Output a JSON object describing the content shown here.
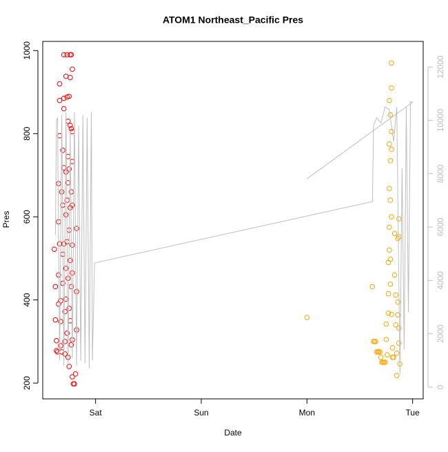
{
  "chart_data": {
    "type": "scatter",
    "title": "ATOM1 Northeast_Pacific Pres",
    "x_label": "Date",
    "y_label": "Pres",
    "xlim": [
      -0.5,
      3.1
    ],
    "xticks": [
      {
        "value": 0,
        "label": "Sat"
      },
      {
        "value": 1,
        "label": "Sun"
      },
      {
        "value": 2,
        "label": "Mon"
      },
      {
        "value": 3,
        "label": "Tue"
      }
    ],
    "ylim": [
      162,
      1022
    ],
    "yticks": [
      200,
      400,
      600,
      800,
      1000
    ],
    "y2lim": [
      -440,
      12960
    ],
    "y2ticks": [
      0,
      2000,
      4000,
      6000,
      8000,
      10000,
      12000
    ],
    "series": [
      {
        "color": "#ff0000",
        "x": [
          -0.39,
          -0.38,
          -0.38,
          -0.37,
          -0.37,
          -0.36,
          -0.35,
          -0.35,
          -0.35,
          -0.35,
          -0.34,
          -0.34,
          -0.34,
          -0.34,
          -0.33,
          -0.33,
          -0.33,
          -0.32,
          -0.32,
          -0.31,
          -0.31,
          -0.31,
          -0.31,
          -0.3,
          -0.3,
          -0.3,
          -0.3,
          -0.3,
          -0.29,
          -0.29,
          -0.29,
          -0.28,
          -0.28,
          -0.28,
          -0.28,
          -0.28,
          -0.27,
          -0.27,
          -0.27,
          -0.27,
          -0.27,
          -0.26,
          -0.26,
          -0.26,
          -0.26,
          -0.26,
          -0.25,
          -0.25,
          -0.25,
          -0.25,
          -0.25,
          -0.24,
          -0.24,
          -0.24,
          -0.24,
          -0.24,
          -0.24,
          -0.23,
          -0.23,
          -0.23,
          -0.23,
          -0.23,
          -0.22,
          -0.22,
          -0.22,
          -0.22,
          -0.22,
          -0.22,
          -0.22,
          -0.22,
          -0.21,
          -0.2,
          -0.19,
          -0.18,
          -0.18,
          -0.18
        ],
        "values": [
          522,
          432,
          352,
          302,
          278,
          275,
          680,
          588,
          460,
          390,
          920,
          880,
          795,
          535,
          398,
          348,
          290,
          275,
          660,
          760,
          628,
          510,
          440,
          990,
          885,
          860,
          718,
          535,
          372,
          300,
          270,
          938,
          708,
          605,
          476,
          402,
          990,
          888,
          640,
          540,
          320,
          830,
          745,
          682,
          452,
          262,
          890,
          715,
          568,
          380,
          240,
          990,
          935,
          820,
          622,
          495,
          350,
          990,
          812,
          660,
          432,
          292,
          955,
          805,
          733,
          628,
          532,
          465,
          304,
          215,
          198,
          198,
          222,
          328,
          420,
          572
        ]
      },
      {
        "color": "#ffa500",
        "x": [
          2.0,
          2.62,
          2.63,
          2.64,
          2.65,
          2.66,
          2.67,
          2.68,
          2.69,
          2.7,
          2.71,
          2.72,
          2.73,
          2.74,
          2.75,
          2.75,
          2.76,
          2.77,
          2.77,
          2.77,
          2.78,
          2.78,
          2.78,
          2.78,
          2.78,
          2.79,
          2.79,
          2.79,
          2.79,
          2.79,
          2.8,
          2.8,
          2.8,
          2.8,
          2.8,
          2.8,
          2.81,
          2.81,
          2.82,
          2.83,
          2.83,
          2.84,
          2.84,
          2.85,
          2.85,
          2.86,
          2.86,
          2.86,
          2.87,
          2.87,
          2.87,
          2.87,
          2.88
        ],
        "values": [
          358,
          432,
          300,
          300,
          300,
          275,
          275,
          275,
          275,
          262,
          250,
          250,
          250,
          250,
          342,
          305,
          268,
          490,
          415,
          368,
          775,
          668,
          575,
          520,
          880,
          845,
          735,
          640,
          498,
          438,
          970,
          910,
          805,
          762,
          600,
          365,
          285,
          262,
          262,
          560,
          460,
          412,
          340,
          272,
          218,
          395,
          548,
          364,
          595,
          552,
          332,
          296,
          246
        ]
      },
      {
        "color": "#bebebe",
        "axis": "y2",
        "line": true,
        "x": [
          -0.38,
          -0.37,
          -0.36,
          -0.34,
          -0.32,
          -0.3,
          -0.28,
          -0.26,
          -0.24,
          -0.22,
          -0.2,
          -0.18,
          -0.16,
          -0.14,
          -0.12,
          -0.1,
          -0.08,
          -0.06,
          -0.04,
          -0.03,
          -0.01,
          2.62,
          2.63,
          2.66,
          2.7,
          2.74,
          2.78,
          2.82,
          2.85,
          2.88,
          2.9,
          2.92,
          2.94,
          2.96,
          2.98,
          3.0,
          2.0
        ],
        "values": [
          5700,
          10000,
          10100,
          1000,
          10200,
          800,
          10300,
          900,
          9600,
          1100,
          10300,
          800,
          9800,
          1000,
          10200,
          900,
          10100,
          700,
          10300,
          1000,
          4655,
          6956,
          9800,
          10100,
          9900,
          10500,
          10400,
          9200,
          10500,
          500,
          8200,
          1400,
          10500,
          2800,
          10700,
          10680,
          7810
        ]
      }
    ]
  }
}
